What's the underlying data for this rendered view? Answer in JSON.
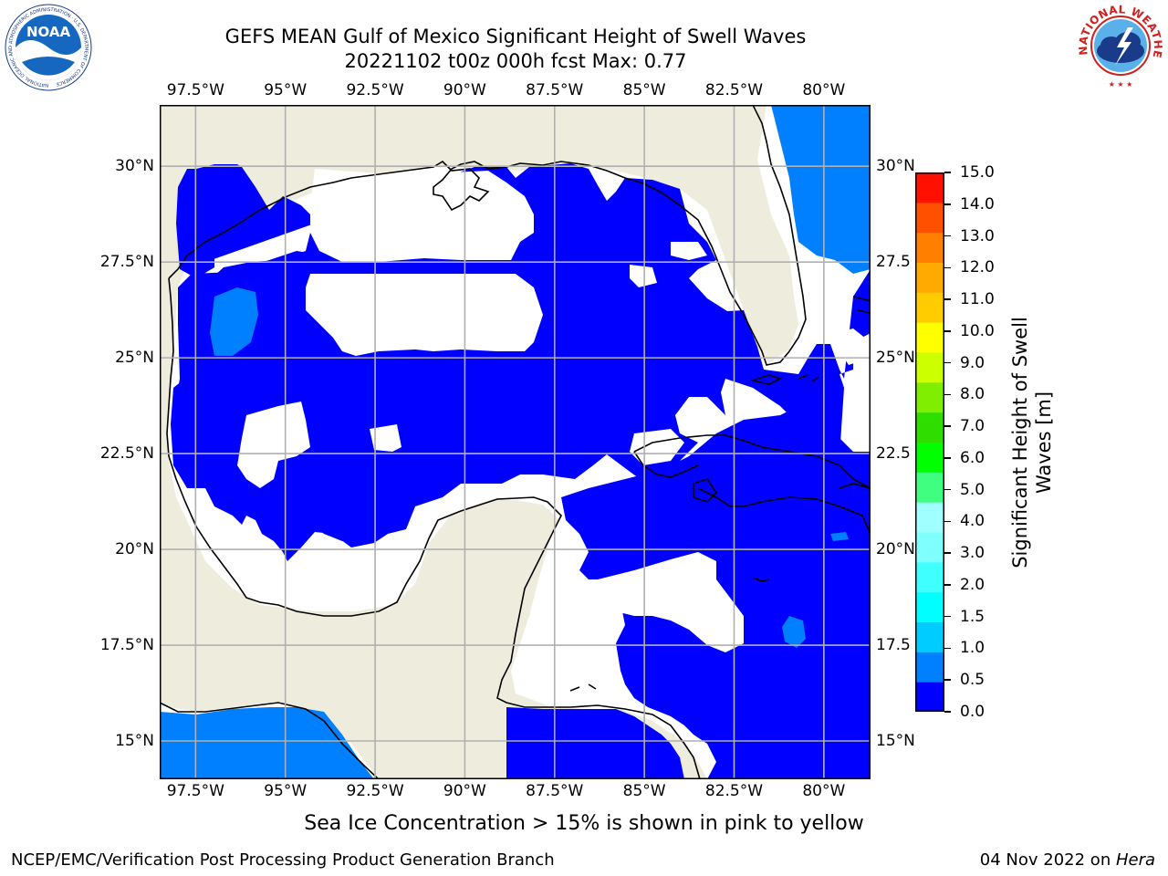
{
  "title": {
    "line1": "GEFS MEAN Gulf of Mexico Significant Height of Swell Waves",
    "line2": "20221102 t00z 000h fcst   Max: 0.77"
  },
  "map": {
    "lon_range": [
      -98.5,
      -78.7
    ],
    "lat_range": [
      14.0,
      31.6
    ],
    "lon_ticks": [
      -97.5,
      -95,
      -92.5,
      -90,
      -87.5,
      -85,
      -82.5,
      -80
    ],
    "lat_ticks": [
      15,
      17.5,
      20,
      22.5,
      25,
      27.5,
      30
    ],
    "lon_labels": [
      "97.5°W",
      "95°W",
      "92.5°W",
      "90°W",
      "87.5°W",
      "85°W",
      "82.5°W",
      "80°W"
    ],
    "lat_labels": [
      "15°N",
      "17.5°N",
      "20°N",
      "22.5°N",
      "25°N",
      "27.5°N",
      "30°N"
    ],
    "right_lat_labels": [
      "15°N",
      "17.5",
      "20°N",
      "22.5",
      "25°N",
      "27.5",
      "30°N"
    ],
    "colors": {
      "land": "#eeeddd",
      "swell_0_05": "#0000ff",
      "swell_05_10": "#0080ff",
      "gridline": "#b0b0b0",
      "coast": "#000000"
    },
    "grid": "on"
  },
  "colorbar": {
    "label": "Significant Height of Swell Waves [m]",
    "label_line1": "Significant Height of Swell",
    "label_line2": "Waves [m]",
    "ticks": [
      "0.0",
      "0.5",
      "1.0",
      "1.5",
      "2.0",
      "3.0",
      "4.0",
      "5.0",
      "6.0",
      "7.0",
      "8.0",
      "9.0",
      "10.0",
      "11.0",
      "12.0",
      "13.0",
      "14.0",
      "15.0"
    ],
    "colors": [
      "#0000ff",
      "#0080ff",
      "#00ccff",
      "#00ffff",
      "#40ffff",
      "#80ffff",
      "#a0ffff",
      "#40ff80",
      "#00ff00",
      "#30dd00",
      "#80ee00",
      "#ccff00",
      "#ffff00",
      "#ffcc00",
      "#ffaa00",
      "#ff8000",
      "#ff5000",
      "#ff1000"
    ]
  },
  "note": "Sea Ice Concentration > 15% is shown in pink to yellow",
  "footer": {
    "left": "NCEP/EMC/Verification Post Processing Product Generation Branch",
    "date": "04 Nov 2022 on ",
    "machine": "Hera"
  },
  "logos": {
    "noaa_text": "NOAA",
    "noaa_ring": "NATIONAL OCEANIC AND ATMOSPHERIC ADMINISTRATION · U.S. DEPARTMENT OF COMMERCE",
    "nws_ring": "NATIONAL WEATHER SERVICE"
  }
}
